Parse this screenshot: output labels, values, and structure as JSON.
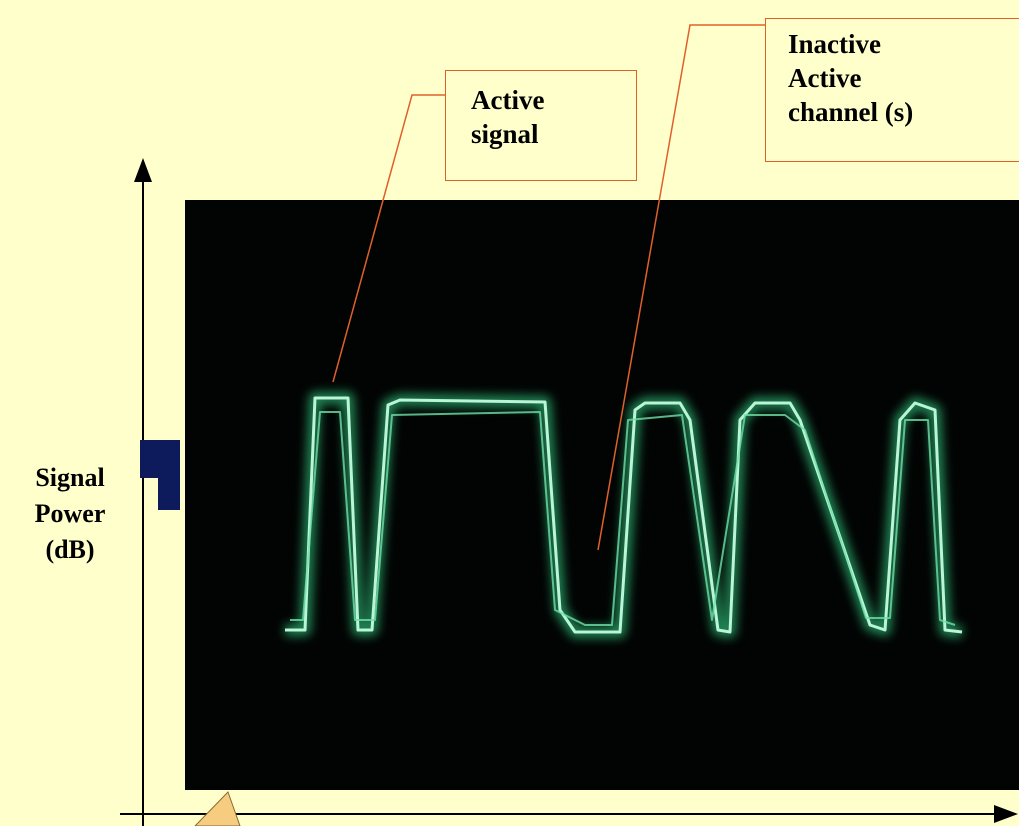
{
  "callouts": [
    {
      "lines": [
        "Active",
        "signal"
      ]
    },
    {
      "lines": [
        "Inactive",
        "Active",
        "channel (s)"
      ]
    }
  ],
  "y_axis_label": {
    "lines": [
      "Signal",
      "Power",
      "(dB)"
    ]
  }
}
